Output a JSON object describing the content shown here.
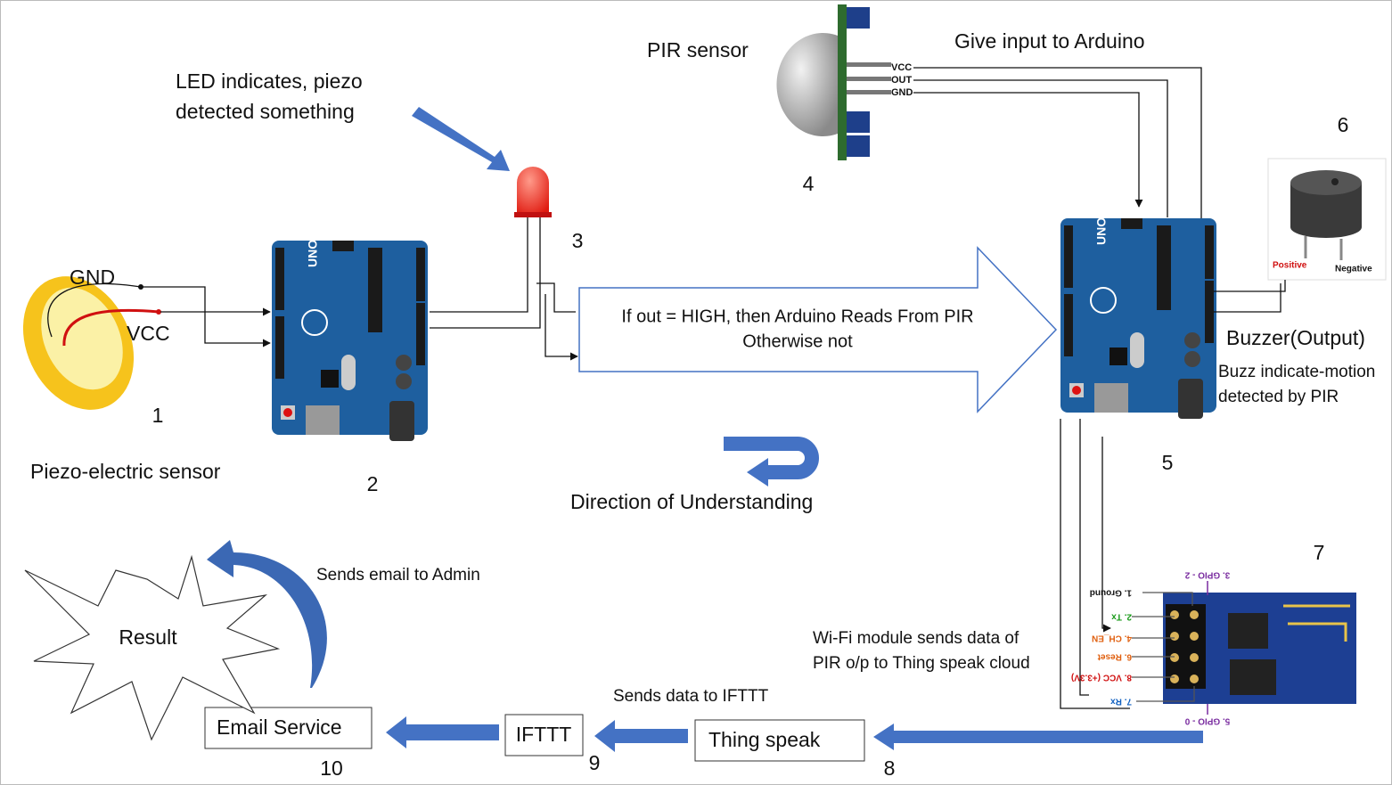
{
  "piezo": {
    "gnd": "GND",
    "vcc": "VCC",
    "label": "Piezo-electric sensor",
    "number": "1"
  },
  "arduino_1": {
    "board": "UNO",
    "number": "2"
  },
  "led": {
    "caption": [
      "LED indicates, piezo",
      "detected something"
    ],
    "number": "3"
  },
  "pir": {
    "label": "PIR sensor",
    "pins": [
      "VCC",
      "OUT",
      "GND"
    ],
    "number": "4",
    "note": "Give input to Arduino"
  },
  "flow_arrow": {
    "lines": [
      "If out = HIGH, then Arduino Reads From PIR",
      "Otherwise not"
    ]
  },
  "arduino_2": {
    "board": "UNO",
    "number": "5"
  },
  "buzzer": {
    "number": "6",
    "positive": "Positive",
    "negative": "Negative",
    "label": "Buzzer(Output)",
    "caption": [
      "Buzz indicate-motion",
      "detected by PIR"
    ]
  },
  "direction": "Direction of Understanding",
  "wifi": {
    "number": "7",
    "pins": [
      "1. Ground",
      "2. Tx",
      "4. CH_EN",
      "6. Reset",
      "8. VCC (+3.3V)",
      "7. Rx"
    ],
    "top_pin": "3. GPIO - 2",
    "bottom_pin": "5. GPIO - 0",
    "caption": [
      "Wi-Fi module sends data of",
      "PIR o/p to Thing speak cloud"
    ]
  },
  "thingspeak": {
    "label": "Thing speak",
    "number": "8"
  },
  "ifttt": {
    "label": "IFTTT",
    "number": "9",
    "edge": "Sends data to IFTTT"
  },
  "email": {
    "label": "Email Service",
    "number": "10",
    "edge": "Sends email to Admin"
  },
  "result": "Result"
}
